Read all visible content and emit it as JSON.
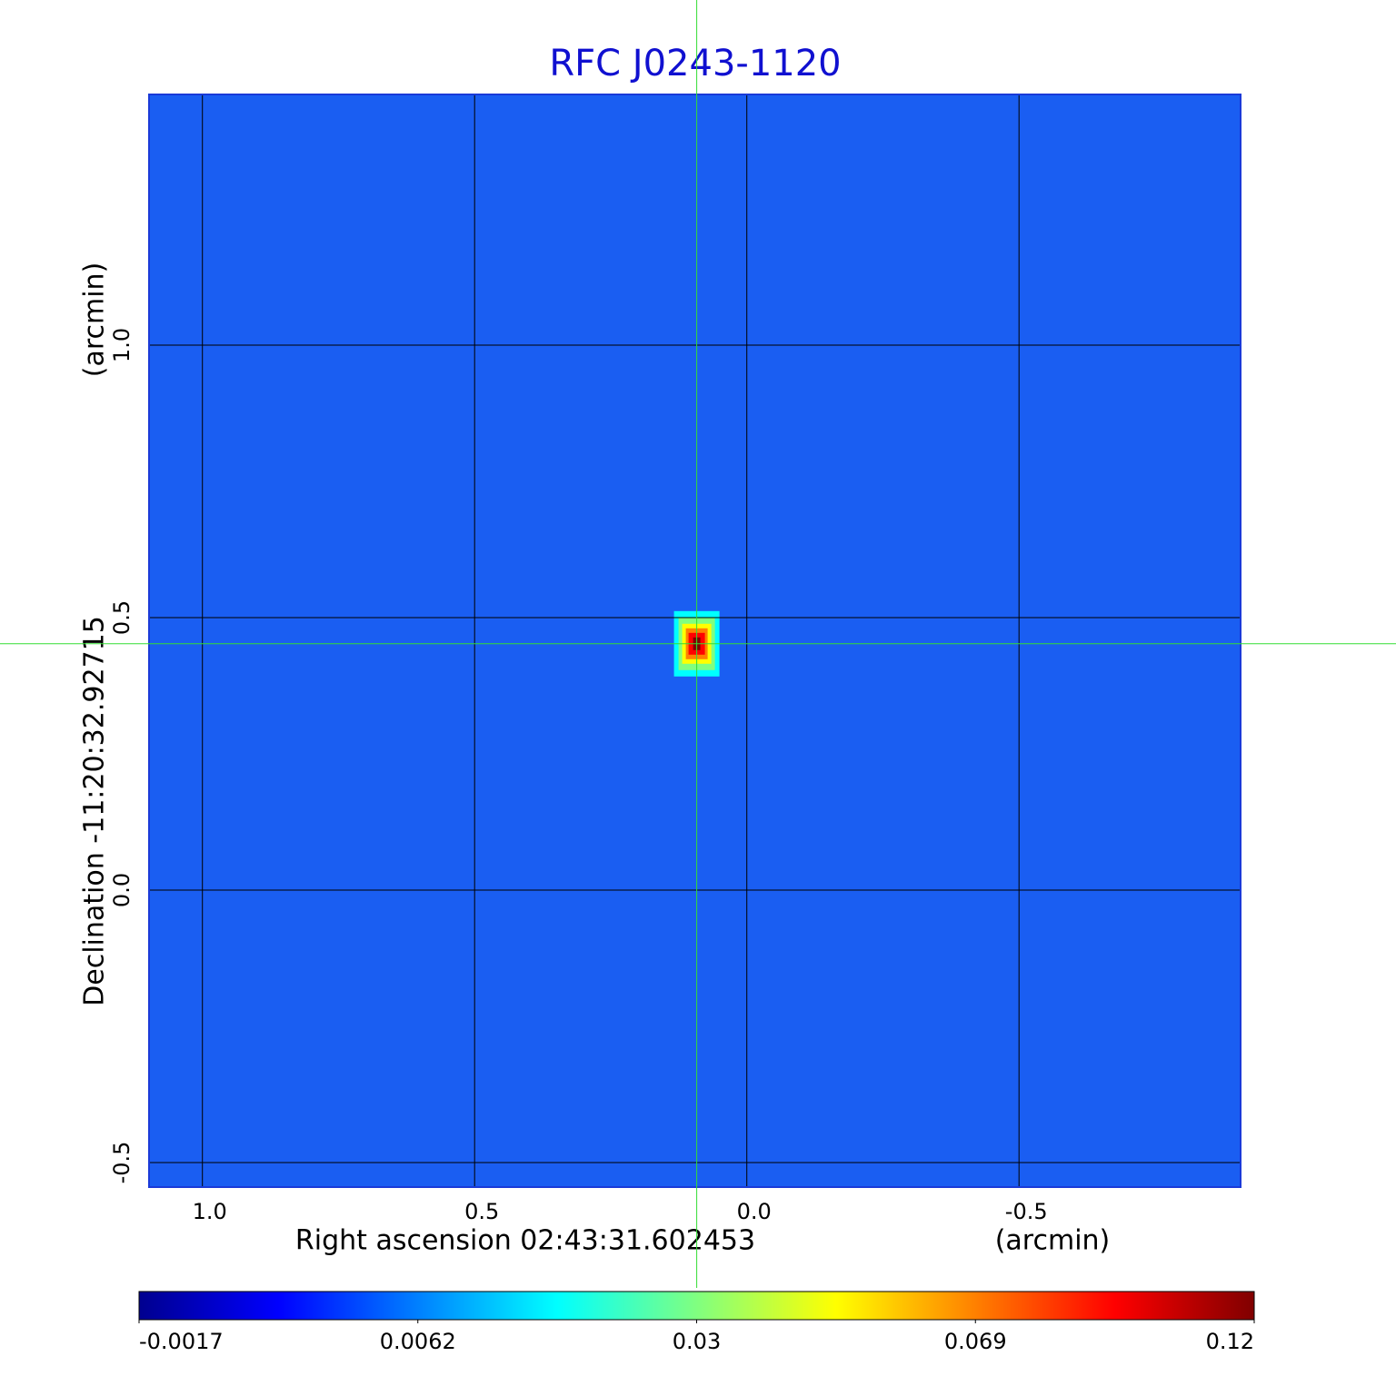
{
  "chart_data": {
    "type": "image",
    "title": "RFC J0243-1120",
    "x_label": "Right ascension  02:43:31.602453",
    "x_unit": "(arcmin)",
    "y_label": "Declination  -11:20:32.92715",
    "y_unit": "(arcmin)",
    "xlim": [
      1.098,
      -0.907
    ],
    "ylim": [
      -0.545,
      1.46
    ],
    "xticks": [
      {
        "value": 1.0,
        "label": "1.0"
      },
      {
        "value": 0.5,
        "label": "0.5"
      },
      {
        "value": 0.0,
        "label": "0.0"
      },
      {
        "value": -0.5,
        "label": "-0.5"
      }
    ],
    "yticks": [
      {
        "value": 1.0,
        "label": "1.0"
      },
      {
        "value": 0.5,
        "label": "0.5"
      },
      {
        "value": 0.0,
        "label": "0.0"
      },
      {
        "value": -0.5,
        "label": "-0.5"
      }
    ],
    "grid": true,
    "background_color": "#1a5ef2",
    "source": {
      "x": 0.092,
      "y": 0.452,
      "peak": 0.12
    },
    "crosshair_color": "#33dd33",
    "colorbar": {
      "ticks": [
        -0.0017,
        0.0062,
        0.03,
        0.069,
        0.12
      ],
      "colors": [
        "#00008f",
        "#0000ff",
        "#0080ff",
        "#00ffff",
        "#80ff80",
        "#ffff00",
        "#ff8000",
        "#ff0000",
        "#800000"
      ]
    }
  }
}
